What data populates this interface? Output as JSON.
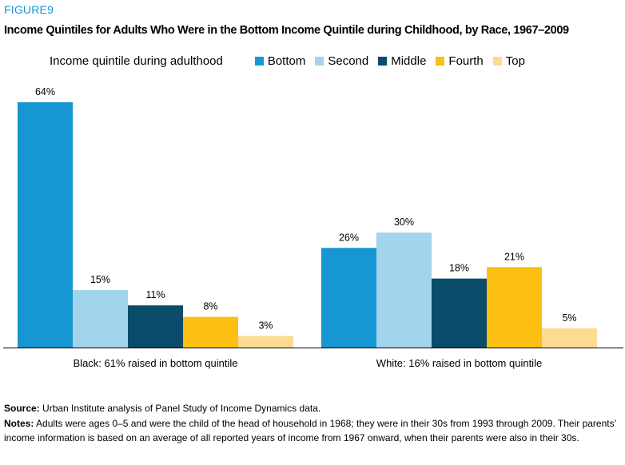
{
  "figure_label": "FIGURE9",
  "title": "Income Quintiles for Adults Who Were in the Bottom Income Quintile during Childhood, by Race, 1967–2009",
  "legend": {
    "title": "Income quintile during adulthood"
  },
  "colors": {
    "Bottom": "#1696d2",
    "Second": "#a2d4ec",
    "Middle": "#0a4c6a",
    "Fourth": "#fdbf11",
    "Top": "#fddb91",
    "axis": "#000000"
  },
  "chart_data": {
    "type": "bar",
    "categories": [
      "Black: 61% raised in bottom quintile",
      "White: 16% raised in bottom quintile"
    ],
    "series": [
      {
        "name": "Bottom",
        "values": [
          64,
          26
        ],
        "labels": [
          "64%",
          "26%"
        ]
      },
      {
        "name": "Second",
        "values": [
          15,
          30
        ],
        "labels": [
          "15%",
          "30%"
        ]
      },
      {
        "name": "Middle",
        "values": [
          11,
          18
        ],
        "labels": [
          "11%",
          "18%"
        ]
      },
      {
        "name": "Fourth",
        "values": [
          8,
          21
        ],
        "labels": [
          "8%",
          "21%"
        ]
      },
      {
        "name": "Top",
        "values": [
          3,
          5
        ],
        "labels": [
          "3%",
          "5%"
        ]
      }
    ],
    "ylim": [
      0,
      64
    ],
    "grid": false,
    "legend_position": "top"
  },
  "source": {
    "label": "Source:",
    "text": "Urban Institute analysis of Panel Study of Income Dynamics data."
  },
  "notes": {
    "label": "Notes:",
    "text": "Adults were ages 0–5 and were the child of the head of household in 1968; they were in their 30s from 1993 through 2009. Their parents’ income information is based on an average of all reported years of income from 1967 onward, when their parents were also in their 30s."
  }
}
